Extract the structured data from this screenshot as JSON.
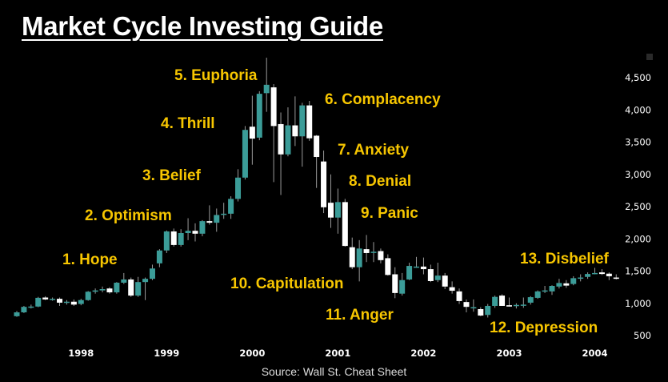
{
  "chart_data": {
    "type": "candlestick",
    "title": "Market Cycle Investing Guide",
    "source": "Source: Wall St. Cheat Sheet",
    "interval": "monthly",
    "start": "1997-04",
    "end": "2004-04",
    "ylim": [
      500,
      4500
    ],
    "y_ticks": [
      "4,500",
      "4,000",
      "3,500",
      "3,000",
      "2,500",
      "2,000",
      "1,500",
      "1,000",
      "500"
    ],
    "y_tick_values": [
      4500,
      4000,
      3500,
      3000,
      2500,
      2000,
      1500,
      1000,
      500
    ],
    "x_ticks": [
      "1998",
      "1999",
      "2000",
      "2001",
      "2002",
      "2003",
      "2004"
    ],
    "x_tick_months": [
      9,
      21,
      33,
      45,
      57,
      69,
      81
    ],
    "grid": false,
    "up_color": "#3b9c98",
    "down_color": "#ffffff",
    "annotation_color": "#f7c600",
    "annotations": [
      "1. Hope",
      "2. Optimism",
      "3. Belief",
      "4. Thrill",
      "5. Euphoria",
      "6. Complacency",
      "7. Anxiety",
      "8. Denial",
      "9. Panic",
      "10. Capitulation",
      "11. Anger",
      "12. Depression",
      "13. Disbelief"
    ],
    "ohlc": [
      [
        800,
        880,
        790,
        860
      ],
      [
        860,
        960,
        850,
        945
      ],
      [
        945,
        980,
        920,
        950
      ],
      [
        950,
        1100,
        940,
        1085
      ],
      [
        1090,
        1110,
        1050,
        1060
      ],
      [
        1060,
        1090,
        1040,
        1070
      ],
      [
        1070,
        1090,
        960,
        1010
      ],
      [
        1010,
        1050,
        980,
        1025
      ],
      [
        1025,
        1060,
        960,
        980
      ],
      [
        990,
        1070,
        970,
        1050
      ],
      [
        1050,
        1190,
        1040,
        1180
      ],
      [
        1180,
        1230,
        1150,
        1200
      ],
      [
        1200,
        1260,
        1170,
        1220
      ],
      [
        1230,
        1250,
        1150,
        1170
      ],
      [
        1170,
        1330,
        1150,
        1320
      ],
      [
        1320,
        1470,
        1300,
        1370
      ],
      [
        1370,
        1400,
        1100,
        1120
      ],
      [
        1120,
        1410,
        1100,
        1330
      ],
      [
        1330,
        1400,
        1050,
        1380
      ],
      [
        1380,
        1600,
        1360,
        1540
      ],
      [
        1620,
        1840,
        1560,
        1820
      ],
      [
        1820,
        2130,
        1780,
        2115
      ],
      [
        2115,
        2160,
        1880,
        1905
      ],
      [
        1905,
        2150,
        1880,
        2090
      ],
      [
        2090,
        2320,
        1980,
        2125
      ],
      [
        2125,
        2240,
        1960,
        2080
      ],
      [
        2080,
        2290,
        2040,
        2275
      ],
      [
        2275,
        2520,
        2220,
        2250
      ],
      [
        2250,
        2470,
        2110,
        2370
      ],
      [
        2380,
        2560,
        2310,
        2390
      ],
      [
        2390,
        2660,
        2310,
        2620
      ],
      [
        2620,
        3080,
        2580,
        2950
      ],
      [
        2950,
        3750,
        2920,
        3690
      ],
      [
        3740,
        4220,
        3150,
        3555
      ],
      [
        3570,
        4290,
        3530,
        4250
      ],
      [
        4260,
        4810,
        3970,
        4390
      ],
      [
        4350,
        4400,
        2880,
        3750
      ],
      [
        3780,
        3960,
        2680,
        3310
      ],
      [
        3310,
        4040,
        3280,
        3760
      ],
      [
        3760,
        4210,
        3440,
        3590
      ],
      [
        3590,
        4110,
        3120,
        4070
      ],
      [
        4070,
        4140,
        3520,
        3560
      ],
      [
        3600,
        3610,
        2790,
        3270
      ],
      [
        3200,
        3370,
        2400,
        2490
      ],
      [
        2560,
        3000,
        2170,
        2330
      ],
      [
        2330,
        2780,
        2080,
        2570
      ],
      [
        2570,
        2620,
        1880,
        1890
      ],
      [
        1870,
        2020,
        1530,
        1560
      ],
      [
        1560,
        1980,
        1340,
        1850
      ],
      [
        1840,
        2060,
        1640,
        1780
      ],
      [
        1800,
        1950,
        1640,
        1800
      ],
      [
        1810,
        1850,
        1620,
        1670
      ],
      [
        1700,
        1760,
        1430,
        1440
      ],
      [
        1450,
        1560,
        1080,
        1160
      ],
      [
        1150,
        1470,
        1120,
        1360
      ],
      [
        1370,
        1630,
        1360,
        1580
      ],
      [
        1570,
        1720,
        1550,
        1570
      ],
      [
        1570,
        1710,
        1450,
        1530
      ],
      [
        1530,
        1600,
        1330,
        1345
      ],
      [
        1360,
        1630,
        1330,
        1430
      ],
      [
        1430,
        1470,
        1220,
        1260
      ],
      [
        1250,
        1340,
        1150,
        1195
      ],
      [
        1185,
        1230,
        990,
        1035
      ],
      [
        1020,
        1060,
        860,
        945
      ],
      [
        940,
        1060,
        870,
        940
      ],
      [
        910,
        940,
        800,
        810
      ],
      [
        820,
        990,
        780,
        960
      ],
      [
        960,
        1120,
        930,
        1100
      ],
      [
        1120,
        1140,
        960,
        960
      ],
      [
        970,
        1090,
        950,
        950
      ],
      [
        960,
        1000,
        920,
        975
      ],
      [
        980,
        1090,
        930,
        980
      ],
      [
        1010,
        1110,
        980,
        1095
      ],
      [
        1085,
        1200,
        1070,
        1185
      ],
      [
        1185,
        1270,
        1160,
        1200
      ],
      [
        1185,
        1280,
        1130,
        1270
      ],
      [
        1260,
        1380,
        1230,
        1315
      ],
      [
        1310,
        1360,
        1240,
        1275
      ],
      [
        1300,
        1420,
        1280,
        1390
      ],
      [
        1400,
        1450,
        1340,
        1400
      ],
      [
        1410,
        1480,
        1380,
        1455
      ],
      [
        1470,
        1550,
        1450,
        1470
      ],
      [
        1480,
        1530,
        1440,
        1455
      ],
      [
        1460,
        1480,
        1360,
        1420
      ],
      [
        1400,
        1450,
        1370,
        1380
      ]
    ]
  }
}
